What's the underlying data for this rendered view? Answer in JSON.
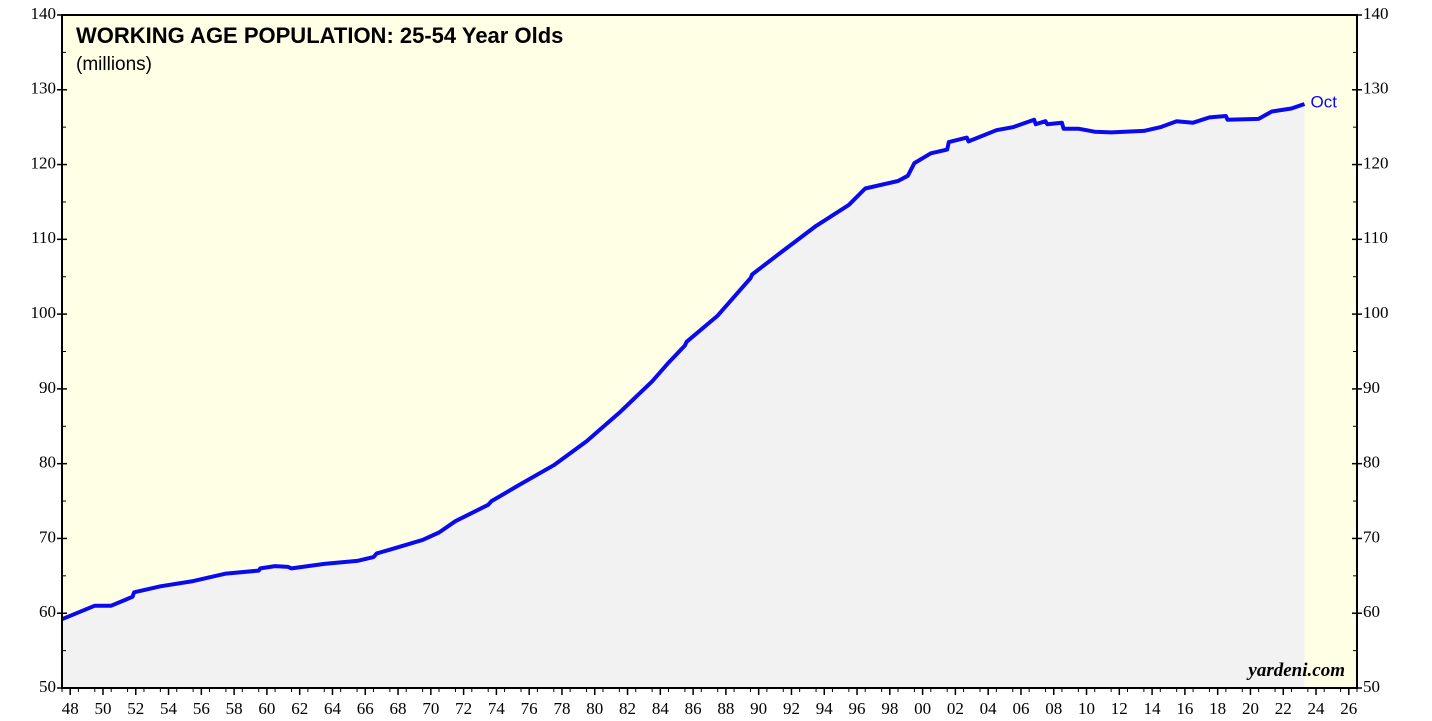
{
  "chart_data": {
    "type": "line",
    "title": "WORKING AGE POPULATION: 25-54 Year Olds",
    "subtitle": "(millions)",
    "source": "yardeni.com",
    "annotation": "Oct",
    "color": "#0a0af0",
    "x": [
      1948.0,
      1950.0,
      1951.0,
      1952.3,
      1952.4,
      1954.0,
      1956.0,
      1958.0,
      1960.0,
      1960.1,
      1961.0,
      1961.8,
      1962.0,
      1964.0,
      1966.0,
      1967.0,
      1967.2,
      1968.0,
      1970.0,
      1971.0,
      1972.0,
      1974.0,
      1974.2,
      1976.0,
      1978.0,
      1980.0,
      1982.0,
      1984.0,
      1985.0,
      1986.0,
      1986.1,
      1988.0,
      1990.0,
      1990.1,
      1992.0,
      1994.0,
      1996.0,
      1997.0,
      1999.0,
      1999.6,
      2000.0,
      2001.0,
      2002.0,
      2002.1,
      2003.2,
      2003.3,
      2005.0,
      2006.0,
      2007.3,
      2007.4,
      2008.0,
      2008.1,
      2009.0,
      2009.1,
      2010.0,
      2011.0,
      2012.0,
      2014.0,
      2015.0,
      2016.0,
      2017.0,
      2018.0,
      2019.0,
      2019.1,
      2021.0,
      2021.8,
      2023.0,
      2023.8
    ],
    "values": [
      59.2,
      61.0,
      61.0,
      62.2,
      62.8,
      63.6,
      64.3,
      65.3,
      65.7,
      66.0,
      66.3,
      66.2,
      66.0,
      66.6,
      67.0,
      67.5,
      68.0,
      68.5,
      69.8,
      70.8,
      72.3,
      74.5,
      75.0,
      77.3,
      79.8,
      83.0,
      86.8,
      91.0,
      93.5,
      95.8,
      96.3,
      99.8,
      104.8,
      105.3,
      108.5,
      111.8,
      114.6,
      116.8,
      117.8,
      118.5,
      120.2,
      121.5,
      122.0,
      123.0,
      123.6,
      123.1,
      124.6,
      125.0,
      126.0,
      125.4,
      125.8,
      125.4,
      125.6,
      124.8,
      124.8,
      124.4,
      124.3,
      124.5,
      125.0,
      125.8,
      125.6,
      126.3,
      126.5,
      126.0,
      126.1,
      127.1,
      127.5,
      128.1
    ],
    "xlim": [
      1948,
      2027
    ],
    "ylim": [
      50,
      140
    ],
    "yticks": [
      50,
      60,
      70,
      80,
      90,
      100,
      110,
      120,
      130,
      140
    ],
    "xticks": [
      {
        "value": 1948.5,
        "label": "48"
      },
      {
        "value": 1950.5,
        "label": "50"
      },
      {
        "value": 1952.5,
        "label": "52"
      },
      {
        "value": 1954.5,
        "label": "54"
      },
      {
        "value": 1956.5,
        "label": "56"
      },
      {
        "value": 1958.5,
        "label": "58"
      },
      {
        "value": 1960.5,
        "label": "60"
      },
      {
        "value": 1962.5,
        "label": "62"
      },
      {
        "value": 1964.5,
        "label": "64"
      },
      {
        "value": 1966.5,
        "label": "66"
      },
      {
        "value": 1968.5,
        "label": "68"
      },
      {
        "value": 1970.5,
        "label": "70"
      },
      {
        "value": 1972.5,
        "label": "72"
      },
      {
        "value": 1974.5,
        "label": "74"
      },
      {
        "value": 1976.5,
        "label": "76"
      },
      {
        "value": 1978.5,
        "label": "78"
      },
      {
        "value": 1980.5,
        "label": "80"
      },
      {
        "value": 1982.5,
        "label": "82"
      },
      {
        "value": 1984.5,
        "label": "84"
      },
      {
        "value": 1986.5,
        "label": "86"
      },
      {
        "value": 1988.5,
        "label": "88"
      },
      {
        "value": 1990.5,
        "label": "90"
      },
      {
        "value": 1992.5,
        "label": "92"
      },
      {
        "value": 1994.5,
        "label": "94"
      },
      {
        "value": 1996.5,
        "label": "96"
      },
      {
        "value": 1998.5,
        "label": "98"
      },
      {
        "value": 2000.5,
        "label": "00"
      },
      {
        "value": 2002.5,
        "label": "02"
      },
      {
        "value": 2004.5,
        "label": "04"
      },
      {
        "value": 2006.5,
        "label": "06"
      },
      {
        "value": 2008.5,
        "label": "08"
      },
      {
        "value": 2010.5,
        "label": "10"
      },
      {
        "value": 2012.5,
        "label": "12"
      },
      {
        "value": 2014.5,
        "label": "14"
      },
      {
        "value": 2016.5,
        "label": "16"
      },
      {
        "value": 2018.5,
        "label": "18"
      },
      {
        "value": 2020.5,
        "label": "20"
      },
      {
        "value": 2022.5,
        "label": "22"
      },
      {
        "value": 2024.5,
        "label": "24"
      },
      {
        "value": 2026.5,
        "label": "26"
      }
    ]
  }
}
